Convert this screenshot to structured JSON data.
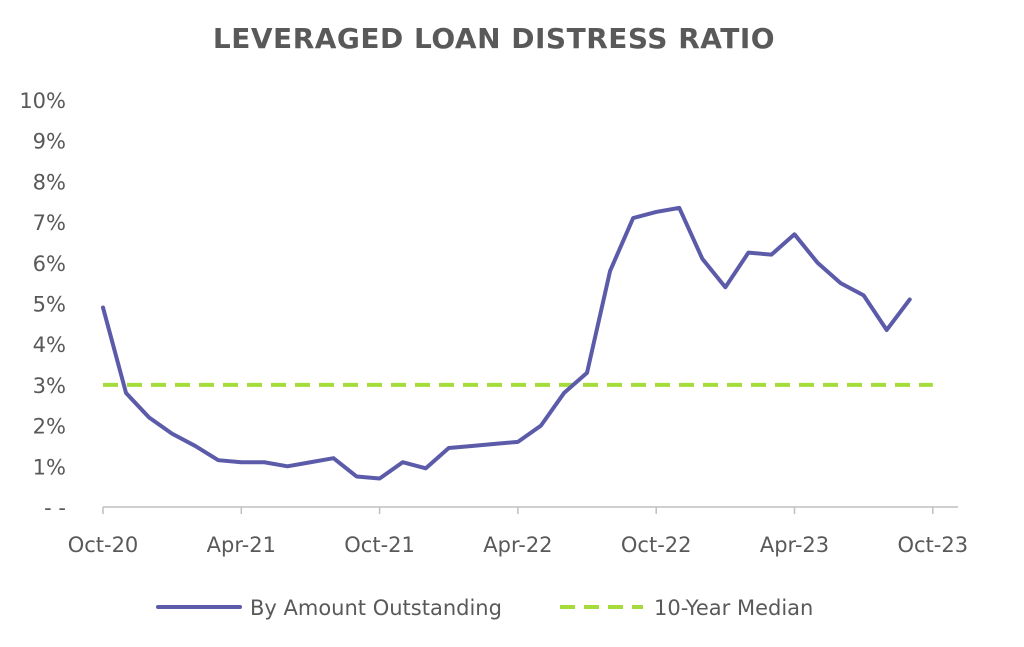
{
  "chart_data": {
    "type": "line",
    "title": "LEVERAGED LOAN DISTRESS RATIO",
    "xlabel": "",
    "ylabel": "",
    "x_tick_labels": [
      "Oct-20",
      "Apr-21",
      "Oct-21",
      "Apr-22",
      "Oct-22",
      "Apr-23",
      "Oct-23"
    ],
    "y_tick_labels": [
      "- -",
      "1%",
      "2%",
      "3%",
      "4%",
      "5%",
      "6%",
      "7%",
      "8%",
      "9%",
      "10%"
    ],
    "ylim": [
      0,
      10
    ],
    "y_unit": "%",
    "grid": false,
    "legend_position": "bottom-center",
    "x": [
      "Oct-20",
      "Nov-20",
      "Dec-20",
      "Jan-21",
      "Feb-21",
      "Mar-21",
      "Apr-21",
      "May-21",
      "Jun-21",
      "Jul-21",
      "Aug-21",
      "Sep-21",
      "Oct-21",
      "Nov-21",
      "Dec-21",
      "Jan-22",
      "Feb-22",
      "Mar-22",
      "Apr-22",
      "May-22",
      "Jun-22",
      "Jul-22",
      "Aug-22",
      "Sep-22",
      "Oct-22",
      "Nov-22",
      "Dec-22",
      "Jan-23",
      "Feb-23",
      "Mar-23",
      "Apr-23",
      "May-23",
      "Jun-23",
      "Jul-23",
      "Aug-23",
      "Sep-23",
      "Oct-23",
      "Nov-23"
    ],
    "series": [
      {
        "name": "By Amount Outstanding",
        "color": "#5B5BAA",
        "style": "solid",
        "values": [
          4.9,
          2.8,
          2.2,
          1.8,
          1.5,
          1.15,
          1.1,
          1.1,
          1.0,
          1.1,
          1.2,
          0.75,
          0.7,
          1.1,
          0.95,
          1.45,
          1.5,
          1.55,
          1.6,
          2.0,
          2.8,
          3.3,
          5.8,
          7.1,
          7.25,
          7.35,
          6.1,
          5.4,
          6.25,
          6.2,
          6.7,
          6.0,
          5.5,
          5.2,
          4.35,
          5.1,
          null,
          null
        ]
      },
      {
        "name": "10-Year Median",
        "color": "#A5DC3C",
        "style": "dashed",
        "values": [
          3.0,
          3.0,
          3.0,
          3.0,
          3.0,
          3.0,
          3.0,
          3.0,
          3.0,
          3.0,
          3.0,
          3.0,
          3.0,
          3.0,
          3.0,
          3.0,
          3.0,
          3.0,
          3.0,
          3.0,
          3.0,
          3.0,
          3.0,
          3.0,
          3.0,
          3.0,
          3.0,
          3.0,
          3.0,
          3.0,
          3.0,
          3.0,
          3.0,
          3.0,
          3.0,
          3.0,
          3.0,
          null
        ]
      }
    ]
  }
}
